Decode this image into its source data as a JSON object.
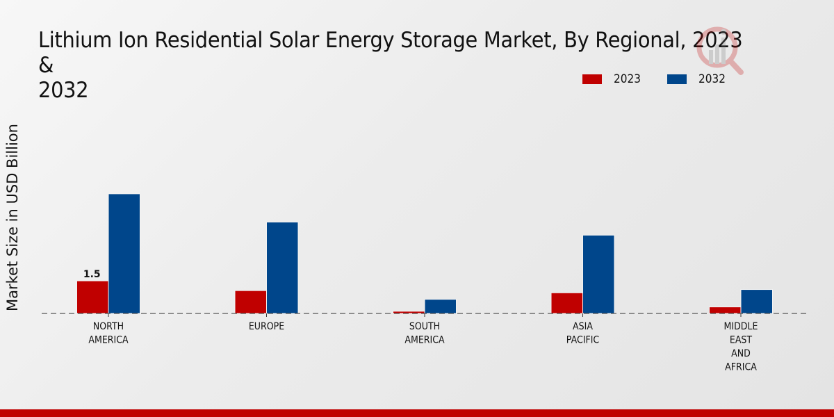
{
  "chart_data": {
    "type": "bar",
    "title": "Lithium Ion Residential Solar Energy Storage Market, By Regional, 2023 & 2032",
    "xlabel": "",
    "ylabel": "Market Size in USD Billion",
    "categories": [
      "NORTH AMERICA",
      "EUROPE",
      "SOUTH AMERICA",
      "ASIA PACIFIC",
      "MIDDLE EAST AND AFRICA"
    ],
    "category_lines": [
      [
        "NORTH",
        "AMERICA"
      ],
      [
        "EUROPE"
      ],
      [
        "SOUTH",
        "AMERICA"
      ],
      [
        "ASIA",
        "PACIFIC"
      ],
      [
        "MIDDLE",
        "EAST",
        "AND",
        "AFRICA"
      ]
    ],
    "series": [
      {
        "name": "2023",
        "color": "#c00000",
        "values": [
          1.5,
          1.05,
          0.1,
          0.95,
          0.3
        ]
      },
      {
        "name": "2032",
        "color": "#00468b",
        "values": [
          5.5,
          4.2,
          0.65,
          3.6,
          1.1
        ]
      }
    ],
    "data_labels": [
      {
        "series": "2023",
        "category": "NORTH AMERICA",
        "text": "1.5"
      }
    ],
    "ylim": [
      0,
      6.5
    ],
    "grid": false,
    "baseline": "dashed",
    "legend_position": "top-right"
  },
  "title_line1": "Lithium Ion Residential Solar Energy Storage Market, By Regional, 2023 &",
  "title_line2": "2032",
  "legend": [
    {
      "label": "2023",
      "color": "#c00000"
    },
    {
      "label": "2032",
      "color": "#00468b"
    }
  ],
  "watermark_icon": "magnifier-chart-logo-icon",
  "footer_color": "#c00000"
}
